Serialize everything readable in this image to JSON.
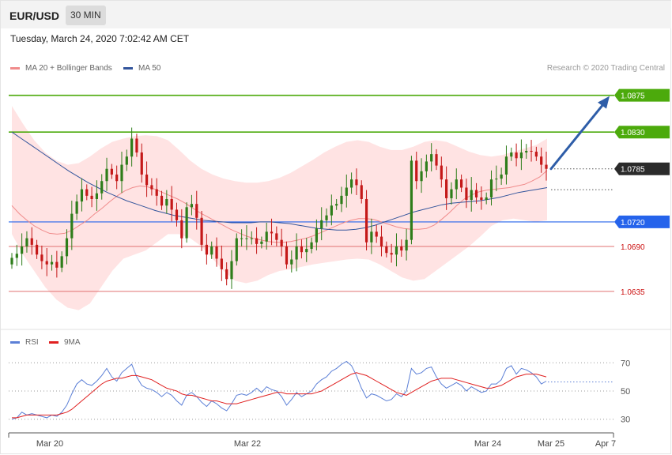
{
  "header": {
    "pair": "EUR/USD",
    "timeframe": "30 MIN"
  },
  "timestamp": "Tuesday, March 24, 2020 7:02:42 AM CET",
  "legend": {
    "ma20": {
      "label": "MA 20 + Bollinger Bands",
      "color": "#f08b8b"
    },
    "ma50": {
      "label": "MA 50",
      "color": "#33559c"
    },
    "credit": "Research © 2020 Trading Central"
  },
  "rsi_legend": {
    "rsi": {
      "label": "RSI",
      "color": "#5b7fd6"
    },
    "ma9": {
      "label": "9MA",
      "color": "#e02020"
    }
  },
  "colors": {
    "bull": "#2e7d1a",
    "bear": "#c41818",
    "band": "#ffe3e3",
    "resistance": "#4caa0c",
    "pivot": "#2563eb",
    "support": "#e07070",
    "current": "#2b2b2b",
    "arrow": "#2e5da8"
  },
  "chart_data": [
    {
      "type": "candlestick",
      "title": "EUR/USD",
      "timeframe": "30 MIN",
      "ylim": [
        1.06,
        1.0895
      ],
      "x_ticks": [
        "Mar 20",
        "Mar 22",
        "Mar 24",
        "Mar 25",
        "Apr 7"
      ],
      "levels": [
        {
          "value": "1.0875",
          "kind": "target"
        },
        {
          "value": "1.0830",
          "kind": "resistance"
        },
        {
          "value": "1.0785",
          "kind": "current"
        },
        {
          "value": "1.0720",
          "kind": "pivot"
        },
        {
          "value": "1.0690",
          "kind": "support"
        },
        {
          "value": "1.0635",
          "kind": "support"
        }
      ],
      "projection": {
        "from": 1.0785,
        "to": 1.0875,
        "direction": "up"
      },
      "closes": [
        1.0676,
        1.0681,
        1.069,
        1.07,
        1.0692,
        1.068,
        1.0672,
        1.0668,
        1.0671,
        1.0664,
        1.0678,
        1.07,
        1.073,
        1.0745,
        1.076,
        1.0752,
        1.0748,
        1.0755,
        1.077,
        1.0785,
        1.0778,
        1.077,
        1.079,
        1.08,
        1.0822,
        1.0805,
        1.0778,
        1.0765,
        1.076,
        1.0752,
        1.074,
        1.0748,
        1.0735,
        1.0722,
        1.07,
        1.0738,
        1.0742,
        1.0725,
        1.0692,
        1.068,
        1.069,
        1.0675,
        1.0662,
        1.065,
        1.0672,
        1.07,
        1.07,
        1.07,
        1.07,
        1.0693,
        1.0696,
        1.0708,
        1.0706,
        1.0698,
        1.069,
        1.0668,
        1.0674,
        1.069,
        1.0683,
        1.0687,
        1.0695,
        1.0712,
        1.0722,
        1.0728,
        1.074,
        1.0742,
        1.0752,
        1.0762,
        1.0772,
        1.0765,
        1.0748,
        1.0695,
        1.0708,
        1.0702,
        1.069,
        1.0682,
        1.068,
        1.069,
        1.0685,
        1.0698,
        1.0795,
        1.077,
        1.0782,
        1.0794,
        1.0803,
        1.0789,
        1.0772,
        1.0749,
        1.076,
        1.0772,
        1.0762,
        1.0747,
        1.0759,
        1.075,
        1.0747,
        1.075,
        1.0772,
        1.0773,
        1.0778,
        1.08,
        1.0805,
        1.0798,
        1.0805,
        1.0807,
        1.0806,
        1.08,
        1.079,
        1.0785
      ],
      "ma20": [
        1.074,
        1.073,
        1.0722,
        1.0715,
        1.071,
        1.0706,
        1.0705,
        1.0706,
        1.071,
        1.0716,
        1.0722,
        1.073,
        1.0737,
        1.0745,
        1.0752,
        1.0758,
        1.0762,
        1.0764,
        1.0763,
        1.076,
        1.0756,
        1.0752,
        1.0748,
        1.0743,
        1.0737,
        1.0731,
        1.0726,
        1.0721,
        1.0716,
        1.0711,
        1.0707,
        1.0703,
        1.07,
        1.0698,
        1.0696,
        1.0695,
        1.0695,
        1.0696,
        1.0698,
        1.07,
        1.0703,
        1.0707,
        1.0711,
        1.0715,
        1.0719,
        1.0722,
        1.0724,
        1.0724,
        1.0723,
        1.072,
        1.0717,
        1.0714,
        1.0712,
        1.0711,
        1.0711,
        1.0712,
        1.0716,
        1.0723,
        1.0731,
        1.074,
        1.0748,
        1.0753,
        1.0757,
        1.0759,
        1.076,
        1.0761,
        1.0762,
        1.0764,
        1.0766,
        1.077,
        1.0775,
        1.0783
      ],
      "ma50": [
        1.083,
        1.0822,
        1.0814,
        1.0806,
        1.0798,
        1.079,
        1.0782,
        1.0775,
        1.0768,
        1.0762,
        1.0756,
        1.0751,
        1.0746,
        1.0742,
        1.0738,
        1.0734,
        1.0731,
        1.0728,
        1.0726,
        1.0724,
        1.0722,
        1.0721,
        1.072,
        1.0719,
        1.0719,
        1.0719,
        1.072,
        1.072,
        1.0719,
        1.0718,
        1.0716,
        1.0714,
        1.0712,
        1.0711,
        1.071,
        1.071,
        1.0711,
        1.0713,
        1.0716,
        1.072,
        1.0724,
        1.0728,
        1.0732,
        1.0735,
        1.0738,
        1.0741,
        1.0743,
        1.0744,
        1.0745,
        1.0746,
        1.0748,
        1.075,
        1.0753,
        1.0756,
        1.0758,
        1.076,
        1.0762
      ],
      "bb_upper": [
        1.0862,
        1.084,
        1.082,
        1.0805,
        1.0795,
        1.079,
        1.0792,
        1.08,
        1.081,
        1.0818,
        1.0822,
        1.0825,
        1.0826,
        1.0825,
        1.082,
        1.0808,
        1.0795,
        1.0785,
        1.0778,
        1.0773,
        1.077,
        1.0768,
        1.0768,
        1.077,
        1.0774,
        1.078,
        1.0788,
        1.0796,
        1.0805,
        1.0812,
        1.0818,
        1.082,
        1.0818,
        1.0812,
        1.0808,
        1.0808,
        1.0812,
        1.0818,
        1.082,
        1.0818,
        1.0812,
        1.0806,
        1.0802,
        1.08,
        1.0802,
        1.0806,
        1.081,
        1.0814,
        1.0822
      ],
      "bb_lower": [
        1.0705,
        1.068,
        1.066,
        1.064,
        1.0625,
        1.0615,
        1.0612,
        1.062,
        1.064,
        1.066,
        1.0675,
        1.068,
        1.0685,
        1.0695,
        1.0705,
        1.0705,
        1.07,
        1.069,
        1.0675,
        1.066,
        1.0648,
        1.0645,
        1.0648,
        1.0655,
        1.066,
        1.0662,
        1.0665,
        1.0668,
        1.067,
        1.0672,
        1.0674,
        1.0675,
        1.0674,
        1.0668,
        1.066,
        1.0652,
        1.0648,
        1.065,
        1.066,
        1.067,
        1.068,
        1.069,
        1.0702,
        1.0715,
        1.0722,
        1.0724,
        1.0722,
        1.072,
        1.0722
      ]
    },
    {
      "type": "line",
      "title": "RSI",
      "ylim": [
        22,
        78
      ],
      "y_ticks": [
        "70",
        "50",
        "30"
      ],
      "series": [
        {
          "name": "RSI",
          "values": [
            30,
            31,
            35,
            33,
            34,
            33,
            32,
            31,
            33,
            32,
            35,
            40,
            48,
            55,
            58,
            55,
            54,
            57,
            61,
            66,
            60,
            57,
            63,
            66,
            69,
            60,
            54,
            52,
            51,
            49,
            46,
            49,
            47,
            43,
            40,
            47,
            49,
            46,
            42,
            39,
            43,
            41,
            38,
            36,
            41,
            47,
            48,
            47,
            49,
            52,
            49,
            53,
            51,
            50,
            46,
            40,
            44,
            49,
            46,
            48,
            50,
            55,
            58,
            60,
            64,
            66,
            69,
            71,
            68,
            61,
            52,
            45,
            48,
            47,
            45,
            43,
            44,
            48,
            46,
            50,
            66,
            62,
            63,
            66,
            67,
            60,
            55,
            52,
            54,
            56,
            54,
            50,
            53,
            51,
            49,
            50,
            55,
            55,
            58,
            66,
            68,
            62,
            66,
            65,
            63,
            60,
            55,
            57
          ]
        },
        {
          "name": "9MA",
          "values": [
            31,
            31,
            32,
            33,
            33,
            33,
            33,
            33,
            33,
            33,
            34,
            35,
            37,
            40,
            43,
            46,
            49,
            52,
            55,
            57,
            58,
            59,
            59,
            60,
            61,
            61,
            60,
            59,
            58,
            56,
            54,
            52,
            51,
            50,
            48,
            47,
            47,
            46,
            45,
            44,
            43,
            43,
            42,
            41,
            41,
            41,
            42,
            43,
            44,
            45,
            46,
            47,
            48,
            49,
            49,
            48,
            48,
            48,
            48,
            48,
            48,
            49,
            50,
            52,
            54,
            56,
            58,
            60,
            62,
            63,
            62,
            61,
            59,
            57,
            55,
            53,
            51,
            49,
            48,
            47,
            49,
            51,
            53,
            55,
            57,
            58,
            59,
            59,
            59,
            58,
            57,
            56,
            55,
            54,
            53,
            52,
            52,
            53,
            54,
            56,
            58,
            60,
            61,
            62,
            62,
            62,
            61,
            60
          ]
        }
      ]
    }
  ]
}
